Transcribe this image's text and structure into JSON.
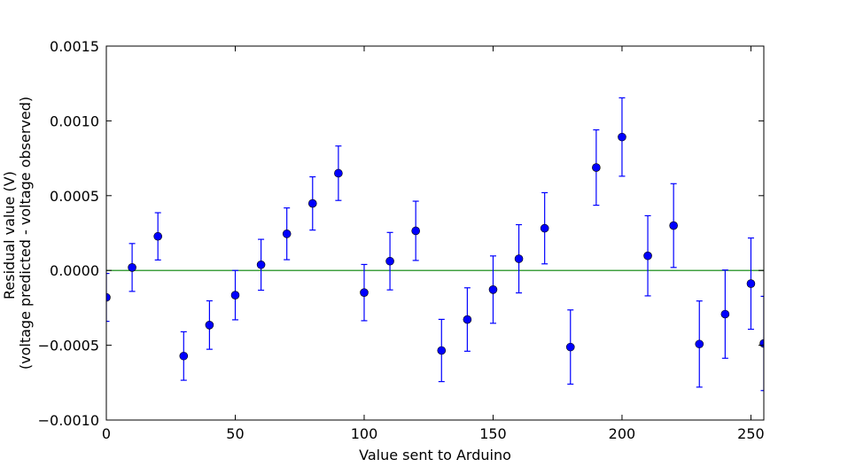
{
  "chart_data": {
    "type": "scatter",
    "title": "",
    "xlabel": "Value sent to Arduino",
    "ylabel_lines": [
      "Residual value (V)",
      "(voltage predicted - voltage observed)"
    ],
    "xlim": [
      0,
      255
    ],
    "ylim": [
      -0.001,
      0.0015
    ],
    "grid": false,
    "x_ticks": [
      0,
      50,
      100,
      150,
      200,
      250
    ],
    "x_tick_labels": [
      "0",
      "50",
      "100",
      "150",
      "200",
      "250"
    ],
    "y_ticks": [
      -0.001,
      -0.0005,
      0.0,
      0.0005,
      0.001,
      0.0015
    ],
    "y_tick_labels": [
      "−0.0010",
      "−0.0005",
      "0.0000",
      "0.0005",
      "0.0010",
      "0.0015"
    ],
    "reference_line": {
      "y": 0.0,
      "color": "#008000"
    },
    "series": [
      {
        "color": "#0000ff",
        "x": [
          0,
          10,
          20,
          30,
          40,
          50,
          60,
          70,
          80,
          90,
          100,
          110,
          120,
          130,
          140,
          150,
          160,
          170,
          180,
          190,
          200,
          210,
          220,
          230,
          240,
          250,
          255
        ],
        "y": [
          -0.00018,
          2e-05,
          0.000228,
          -0.000572,
          -0.000365,
          -0.000165,
          3.8e-05,
          0.000245,
          0.000448,
          0.00065,
          -0.000148,
          6.2e-05,
          0.000265,
          -0.000535,
          -0.000328,
          -0.000128,
          7.8e-05,
          0.000282,
          -0.000512,
          0.000688,
          0.000892,
          9.8e-05,
          0.0003,
          -0.000492,
          -0.000292,
          -8.8e-05,
          -0.000488
        ],
        "err": [
          0.00016,
          0.00016,
          0.000158,
          0.000162,
          0.000162,
          0.000165,
          0.00017,
          0.000173,
          0.000178,
          0.000182,
          0.000188,
          0.000192,
          0.000198,
          0.000208,
          0.000212,
          0.000225,
          0.000228,
          0.000238,
          0.000248,
          0.000252,
          0.000262,
          0.000268,
          0.00028,
          0.000288,
          0.000295,
          0.000305,
          0.000315
        ]
      }
    ]
  }
}
